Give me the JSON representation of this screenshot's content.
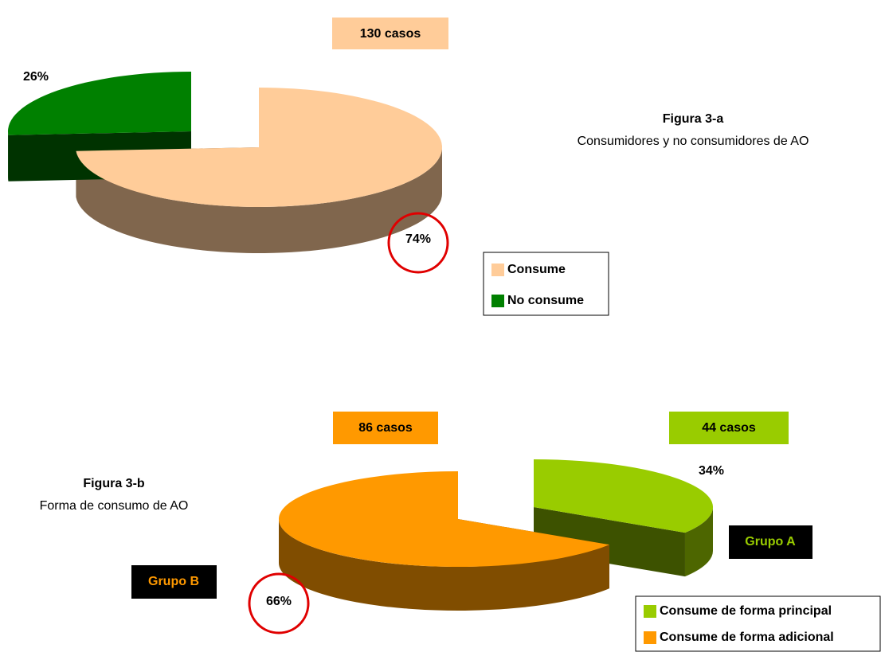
{
  "chart_data": [
    {
      "type": "pie",
      "categories": [
        "Consume",
        "No consume"
      ],
      "values": [
        74,
        26
      ],
      "value_labels": [
        "74%",
        "26%"
      ],
      "colors": [
        "#ffcc99",
        "#008000"
      ],
      "explode": [
        false,
        true
      ],
      "annotations": [
        "130 casos"
      ],
      "caption": {
        "title": "Figura 3-a",
        "text": "Consumidores y no consumidores de AO"
      }
    },
    {
      "type": "pie",
      "categories": [
        "Consume de forma principal",
        "Consume de forma adicional"
      ],
      "values": [
        34,
        66
      ],
      "value_labels": [
        "34%",
        "66%"
      ],
      "colors": [
        "#99cc00",
        "#ff9900"
      ],
      "explode": [
        true,
        false
      ],
      "annotations": [
        "86 casos",
        "44 casos",
        "Grupo B",
        "Grupo A"
      ],
      "caption": {
        "title": "Figura 3-b",
        "text": "Forma de consumo de AO"
      }
    }
  ]
}
